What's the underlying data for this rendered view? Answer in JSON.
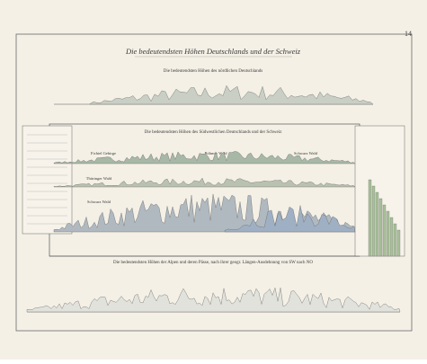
{
  "page_number": "14",
  "title": "Die bedeutendsten Höhen Deutschlands und der Schweiz",
  "panels": [
    {
      "title": "Die bedeutendsten Höhen des nördlichen Deutschlands"
    },
    {
      "title": "Die bedeutendsten Höhen des Südwestlichen Deutschlands und der Schweiz",
      "ranges": [
        "Fichtel Gebirge",
        "Böhmer Wald",
        "Schwarz Wald",
        "Thüringer Wald",
        "Schwarz Wald"
      ]
    },
    {
      "title": "Die bedeutendsten Höhen der Alpen und deren Pässe, nach ihrer geogr. Längen-Ausdehnung von SW nach NO"
    }
  ]
}
